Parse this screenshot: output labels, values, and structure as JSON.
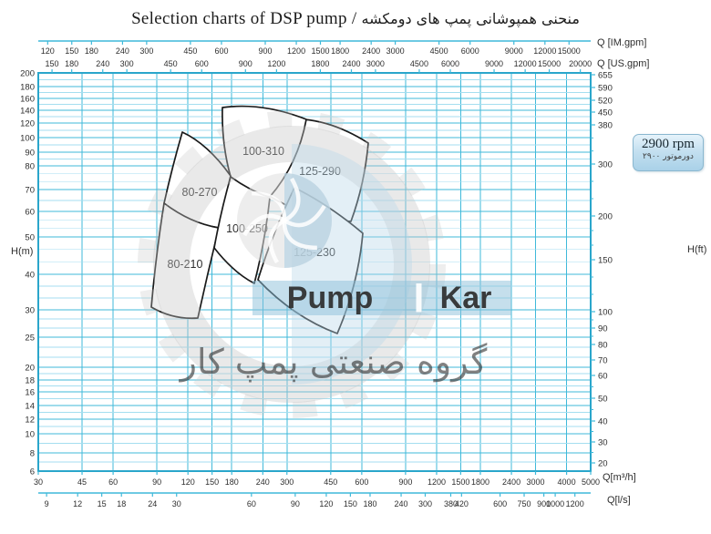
{
  "title": {
    "en": "Selection charts of DSP pump",
    "sep": " / ",
    "fa": "منحنی همپوشانی پمپ های دومکشه"
  },
  "badge": {
    "rpm": "2900 rpm",
    "fa": "دورموتور ۲۹۰۰"
  },
  "watermark": {
    "brand_left": "Pump",
    "brand_right": "Kar",
    "fa": "گروه صنعتی پمپ کار"
  },
  "axes": {
    "top_im": {
      "label": "Q [IM.gpm]",
      "ticks": [
        120,
        150,
        180,
        240,
        300,
        450,
        600,
        900,
        1200,
        1500,
        1800,
        2400,
        3000,
        4500,
        6000,
        9000,
        12000,
        15000
      ]
    },
    "top_us": {
      "label": "Q [US.gpm]",
      "ticks": [
        150,
        180,
        240,
        300,
        450,
        600,
        900,
        1200,
        1800,
        2400,
        3000,
        4500,
        6000,
        9000,
        12000,
        15000,
        20000
      ]
    },
    "left": {
      "label": "H(m)",
      "ticks": [
        200,
        180,
        160,
        140,
        120,
        100,
        90,
        80,
        70,
        60,
        50,
        40,
        30,
        25,
        20,
        18,
        16,
        14,
        12,
        10,
        8,
        6
      ]
    },
    "right": {
      "label": "H(ft)",
      "ticks": [
        655,
        590,
        520,
        450,
        380,
        300,
        200,
        150,
        100,
        90,
        80,
        70,
        60,
        50,
        40,
        30,
        20
      ]
    },
    "bottom_m3h": {
      "label": "Q[m³/h]",
      "ticks": [
        30,
        45,
        60,
        90,
        120,
        150,
        180,
        240,
        300,
        450,
        600,
        900,
        1200,
        1500,
        1800,
        2400,
        3000,
        4000,
        5000
      ]
    },
    "bottom_ls": {
      "label": "Q[l/s]",
      "ticks": [
        9,
        12,
        15,
        18,
        24,
        30,
        60,
        90,
        120,
        150,
        180,
        240,
        300,
        380,
        420,
        600,
        750,
        900,
        1000,
        1200
      ]
    }
  },
  "regions": [
    {
      "label": "125-290",
      "q_m3h": [
        255,
        640
      ],
      "h_m": [
        57,
        123
      ]
    },
    {
      "label": "100-310",
      "q_m3h": [
        165,
        360
      ],
      "h_m": [
        66,
        145
      ]
    },
    {
      "label": "80-270",
      "q_m3h": [
        95,
        180
      ],
      "h_m": [
        52,
        105
      ]
    },
    {
      "label": "80-210",
      "q_m3h": [
        85,
        160
      ],
      "h_m": [
        23,
        64
      ]
    },
    {
      "label": "100-250",
      "q_m3h": [
        150,
        260
      ],
      "h_m": [
        38,
        75
      ]
    },
    {
      "label": "125-230",
      "q_m3h": [
        230,
        710
      ],
      "h_m": [
        25,
        71
      ]
    }
  ],
  "chart_data": {
    "type": "area",
    "title": "Selection charts of DSP pump / منحنی همپوشانی پمپ های دومکشه",
    "speed_rpm": 2900,
    "xlabel": "Q — flow rate (scales: IM.gpm, US.gpm, m³/h, l/s)",
    "ylabel": "H — head (scales: m, ft)",
    "x_scale": "log",
    "xlim_m3h": [
      30,
      5000
    ],
    "ylim_m": [
      6,
      200
    ],
    "series": [
      {
        "name": "80-210",
        "q_range_m3h": [
          85,
          160
        ],
        "h_range_m": [
          23,
          64
        ]
      },
      {
        "name": "80-270",
        "q_range_m3h": [
          95,
          180
        ],
        "h_range_m": [
          52,
          105
        ]
      },
      {
        "name": "100-250",
        "q_range_m3h": [
          150,
          260
        ],
        "h_range_m": [
          38,
          75
        ]
      },
      {
        "name": "100-310",
        "q_range_m3h": [
          165,
          360
        ],
        "h_range_m": [
          66,
          145
        ]
      },
      {
        "name": "125-230",
        "q_range_m3h": [
          230,
          710
        ],
        "h_range_m": [
          25,
          71
        ]
      },
      {
        "name": "125-290",
        "q_range_m3h": [
          255,
          640
        ],
        "h_range_m": [
          57,
          123
        ]
      }
    ],
    "legend_position": "none",
    "grid": true
  },
  "colors": {
    "grid_major": "#3fb9da",
    "grid_minor": "#a5def0",
    "border": "#2aa6cb",
    "region_stroke": "#1a1a1a",
    "badge_bg": "#b9dbee",
    "watermark_blue": "#8cbfd9",
    "watermark_gray": "#c6c6c6"
  }
}
